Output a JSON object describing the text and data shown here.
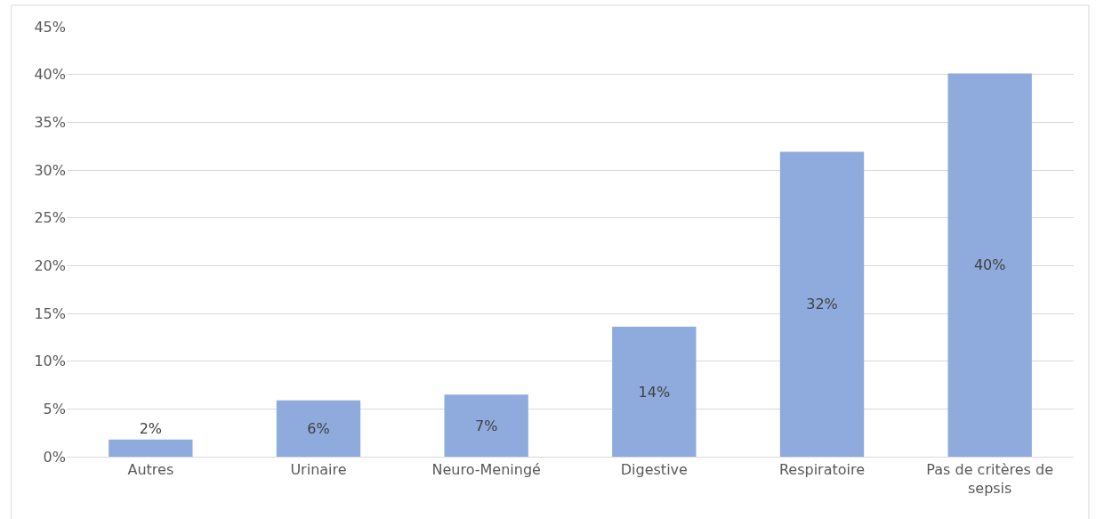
{
  "chart_data": {
    "type": "bar",
    "categories": [
      "Autres",
      "Urinaire",
      "Neuro-Meningé",
      "Digestive",
      "Respiratoire",
      "Pas de critères de sepsis"
    ],
    "values": [
      1.8,
      5.9,
      6.5,
      13.6,
      31.9,
      40.1
    ],
    "value_labels": [
      "2%",
      "6%",
      "7%",
      "14%",
      "32%",
      "40%"
    ],
    "color": "#8faadc",
    "ylim": [
      0,
      45
    ],
    "yticks": [
      {
        "value": 0,
        "label": "0%"
      },
      {
        "value": 5,
        "label": "5%"
      },
      {
        "value": 10,
        "label": "10%"
      },
      {
        "value": 15,
        "label": "15%"
      },
      {
        "value": 20,
        "label": "20%"
      },
      {
        "value": 25,
        "label": "25%"
      },
      {
        "value": 30,
        "label": "30%"
      },
      {
        "value": 35,
        "label": "35%"
      },
      {
        "value": 40,
        "label": "40%"
      },
      {
        "value": 45,
        "label": "45%"
      }
    ],
    "grid": "y"
  }
}
